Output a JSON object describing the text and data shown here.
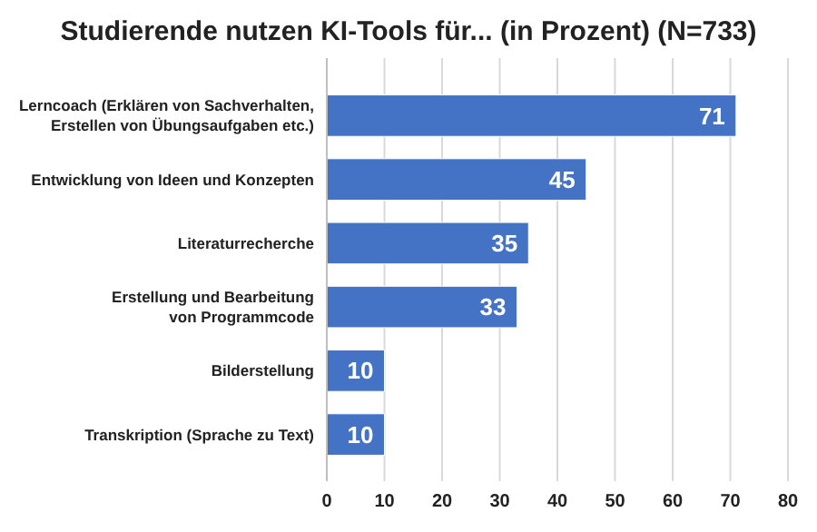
{
  "chart_data": {
    "type": "bar",
    "orientation": "horizontal",
    "title": "Studierende nutzen KI-Tools für... (in Prozent) (N=733)",
    "categories": [
      "Lerncoach (Erklären von Sachverhalten,\nErstellen von Übungsaufgaben etc.)",
      "Entwicklung von Ideen und Konzepten",
      "Literaturrecherche",
      "Erstellung und Bearbeitung\nvon Programmcode",
      "Bilderstellung",
      "Transkription (Sprache zu Text)"
    ],
    "values": [
      71,
      45,
      35,
      33,
      10,
      10
    ],
    "color": "#4472c4",
    "xlim": [
      0,
      80
    ],
    "xticks": [
      0,
      10,
      20,
      30,
      40,
      50,
      60,
      70,
      80
    ],
    "grid": "x",
    "data_labels": true
  }
}
